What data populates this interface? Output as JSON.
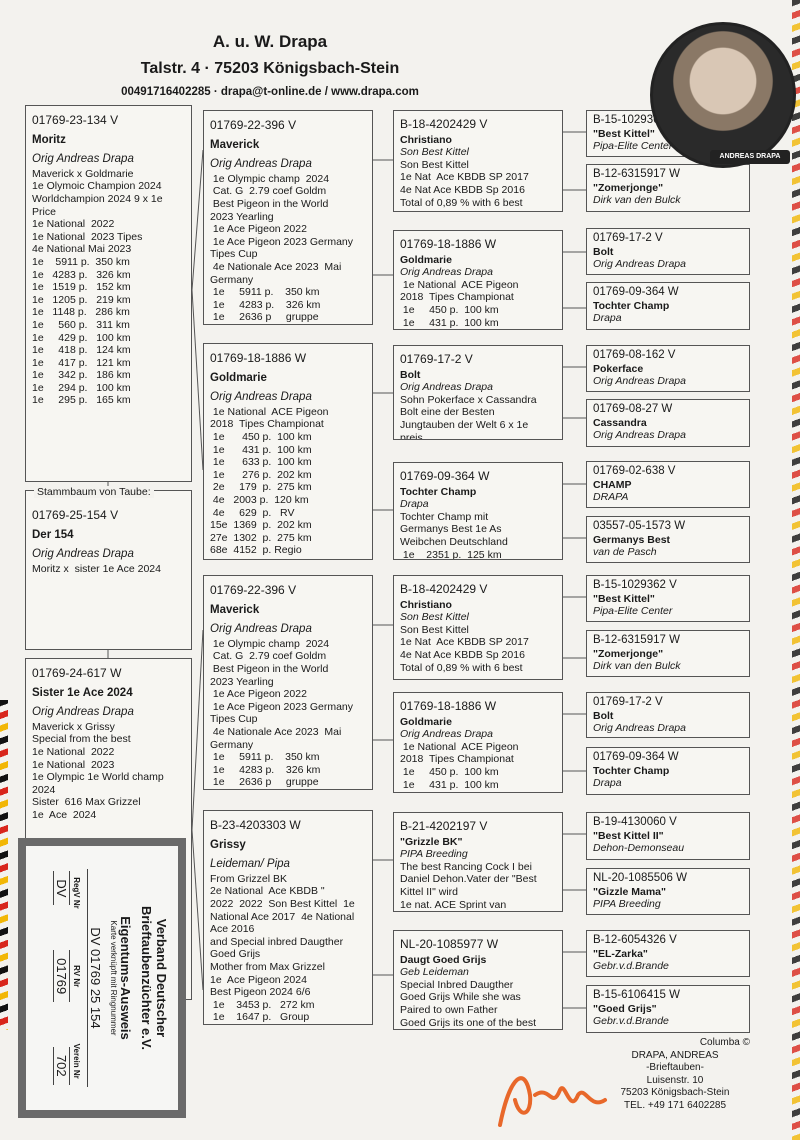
{
  "header": {
    "name": "A. u. W. Drapa",
    "address": "Talstr. 4  ·  75203 Königsbach-Stein",
    "contact": "00491716402285  ·  drapa@t-online.de / www.drapa.com"
  },
  "photo_badge": "ANDREAS DRAPA",
  "legend": "Stammbaum von Taube:",
  "generation1": [
    {
      "ring": "01769-23-134 V",
      "name": "Moritz",
      "breeder": "Orig Andreas Drapa",
      "lines": [
        "Maverick x Goldmarie",
        "1e Olymoic Champion 2024",
        "Worldchampion 2024 9 x 1e",
        "Price",
        "1e National  2022",
        "1e National  2023 Tipes",
        "4e National Mai 2023",
        "1e    5911 p.  350 km",
        "1e   4283 p.   326 km",
        "1e   1519 p.   152 km",
        "1e   1205 p.   219 km",
        "1e   1148 p.   286 km",
        "1e     560 p.   311 km",
        "1e     429 p.   100 km",
        "1e     418 p.   124 km",
        "1e     417 p.   121 km",
        "1e     342 p.   186 km",
        "1e     294 p.   100 km",
        "1e     295 p.   165 km"
      ]
    },
    {
      "ring": "01769-25-154 V",
      "name": "Der   154",
      "breeder": "Orig Andreas Drapa",
      "lines": [
        "Moritz x  sister 1e Ace 2024"
      ]
    },
    {
      "ring": "01769-24-617 W",
      "name": "Sister  1e  Ace 2024",
      "breeder": "Orig Andreas Drapa",
      "lines": [
        "Maverick x Grissy",
        "Special from the best",
        "1e National  2022",
        "1e National  2023",
        "1e Olympic 1e World champ",
        "2024",
        "Sister  616 Max Grizzel",
        "1e  Ace  2024"
      ]
    }
  ],
  "generation2": [
    {
      "ring": "01769-22-396 V",
      "name": "Maverick",
      "breeder": "Orig Andreas Drapa",
      "lines": [
        " 1e Olympic champ  2024",
        " Cat. G  2.79 coef Goldm",
        " Best Pigeon in the World",
        "2023 Yearling",
        " 1e Ace Pigeon 2022",
        " 1e Ace Pigeon 2023 Germany",
        "Tipes Cup",
        " 4e Nationale Ace 2023  Mai",
        "Germany",
        " 1e     5911 p.    350 km",
        " 1e     4283 p.    326 km",
        " 1e     2636 p     gruppe"
      ]
    },
    {
      "ring": "01769-18-1886 W",
      "name": "Goldmarie",
      "breeder": "Orig Andreas Drapa",
      "lines": [
        " 1e National  ACE Pigeon",
        "2018  Tipes Championat",
        " 1e      450 p.  100 km",
        " 1e      431 p.  100 km",
        " 1e      633 p.  100 km",
        " 1e      276 p.  202 km",
        " 2e     179  p.  275 km",
        " 4e   2003 p.  120 km",
        " 4e     629  p.   RV",
        "15e  1369  p.  202 km",
        "27e  1302  p.  275 km",
        "68e  4152  p. Regio"
      ]
    },
    {
      "ring": "01769-22-396 V",
      "name": "Maverick",
      "breeder": "Orig Andreas Drapa",
      "lines": [
        " 1e Olympic champ  2024",
        " Cat. G  2.79 coef Goldm",
        " Best Pigeon in the World",
        "2023 Yearling",
        " 1e Ace Pigeon 2022",
        " 1e Ace Pigeon 2023 Germany",
        "Tipes Cup",
        " 4e Nationale Ace 2023  Mai",
        "Germany",
        " 1e     5911 p.    350 km",
        " 1e     4283 p.    326 km",
        " 1e     2636 p     gruppe"
      ]
    },
    {
      "ring": "B-23-4203303 W",
      "name": "Grissy",
      "breeder": "Leideman/ Pipa",
      "lines": [
        "From Grizzel BK",
        "2e National  Ace KBDB \"",
        "2022  2022  Son Best Kittel  1e",
        "National Ace 2017  4e National",
        "Ace 2016",
        "and Special inbred Daugther",
        "Goed Grijs",
        "Mother from Max Grizzel",
        "1e  Ace Pigeon 2024",
        "Best Pigeon 2024 6/6",
        " 1e    3453 p.   272 km",
        " 1e    1647 p.   Group"
      ]
    }
  ],
  "generation3": [
    {
      "ring": "B-18-4202429 V",
      "name": "Christiano",
      "breeder": "Son Best Kittel",
      "lines": [
        "Son Best Kittel",
        "1e Nat  Ace KBDB SP 2017",
        "4e Nat Ace KBDB Sp 2016",
        "Total of 0,89 % with 6 best"
      ]
    },
    {
      "ring": "01769-18-1886 W",
      "name": "Goldmarie",
      "breeder": "Orig Andreas Drapa",
      "lines": [
        " 1e National  ACE Pigeon",
        "2018  Tipes Championat",
        " 1e     450 p.  100 km",
        " 1e     431 p.  100 km"
      ]
    },
    {
      "ring": "01769-17-2 V",
      "name": "  Bolt",
      "breeder": "Orig Andreas Drapa",
      "lines": [
        "Sohn Pokerface x Cassandra",
        "Bolt eine der Besten",
        "Jungtauben der Welt 6 x 1e",
        "preis"
      ]
    },
    {
      "ring": "01769-09-364 W",
      "name": "Tochter Champ",
      "breeder": "Drapa",
      "lines": [
        "Tochter Champ mit",
        "Germanys Best 1e As",
        "Weibchen Deutschland",
        " 1e    2351 p.  125 km"
      ]
    },
    {
      "ring": "B-18-4202429 V",
      "name": "Christiano",
      "breeder": "Son Best Kittel",
      "lines": [
        "Son Best Kittel",
        "1e Nat  Ace KBDB SP 2017",
        "4e Nat Ace KBDB Sp 2016",
        "Total of 0,89 % with 6 best"
      ]
    },
    {
      "ring": "01769-18-1886 W",
      "name": "Goldmarie",
      "breeder": "Orig Andreas Drapa",
      "lines": [
        " 1e National  ACE Pigeon",
        "2018  Tipes Championat",
        " 1e     450 p.  100 km",
        " 1e     431 p.  100 km"
      ]
    },
    {
      "ring": "B-21-4202197 V",
      "name": "\"Grizzle BK\"",
      "breeder": "PIPA Breeding",
      "lines": [
        "The best Rancing Cock I bei",
        "Daniel Dehon.Vater der \"Best",
        "Kittel II\" wird",
        "1e nat. ACE Sprint van"
      ]
    },
    {
      "ring": "NL-20-1085977 W",
      "name": "Daugt Goed Grijs",
      "breeder": "Geb Leideman",
      "lines": [
        "Special Inbred Daugther",
        "Goed Grijs While she was",
        "Paired to own Father",
        "Goed Grijs its one of the best"
      ]
    }
  ],
  "generation4": [
    {
      "ring": "B-15-1029362 V",
      "name": "\"Best Kittel\"",
      "breeder": "Pipa-Elite Center"
    },
    {
      "ring": "B-12-6315917 W",
      "name": "\"Zomerjonge\"",
      "breeder": "Dirk van den Bulck"
    },
    {
      "ring": "01769-17-2 V",
      "name": "  Bolt",
      "breeder": "Orig Andreas Drapa"
    },
    {
      "ring": "01769-09-364 W",
      "name": "Tochter Champ",
      "breeder": "Drapa"
    },
    {
      "ring": "01769-08-162 V",
      "name": "Pokerface",
      "breeder": "Orig Andreas Drapa"
    },
    {
      "ring": "01769-08-27 W",
      "name": "Cassandra",
      "breeder": "Orig Andreas Drapa"
    },
    {
      "ring": "01769-02-638 V",
      "name": "CHAMP",
      "breeder": "DRAPA"
    },
    {
      "ring": "03557-05-1573 W",
      "name": "Germanys Best",
      "breeder": "van de Pasch"
    },
    {
      "ring": "B-15-1029362 V",
      "name": "\"Best Kittel\"",
      "breeder": "Pipa-Elite Center"
    },
    {
      "ring": "B-12-6315917 W",
      "name": "\"Zomerjonge\"",
      "breeder": "Dirk van den Bulck"
    },
    {
      "ring": "01769-17-2 V",
      "name": "  Bolt",
      "breeder": "Orig Andreas Drapa"
    },
    {
      "ring": "01769-09-364 W",
      "name": "Tochter Champ",
      "breeder": "Drapa"
    },
    {
      "ring": "B-19-4130060 V",
      "name": "\"Best Kittel II\"",
      "breeder": "Dehon-Demonseau"
    },
    {
      "ring": "NL-20-1085506 W",
      "name": "\"Gizzle Mama\"",
      "breeder": "PIPA Breeding"
    },
    {
      "ring": "B-12-6054326 V",
      "name": "\"EL-Zarka\"",
      "breeder": "Gebr.v.d.Brande"
    },
    {
      "ring": "B-15-6106415 W",
      "name": "\"Goed Grijs\"",
      "breeder": "Gebr.v.d.Brande"
    }
  ],
  "stamp": {
    "org_line1": "Verband Deutscher",
    "org_line2": "Brieftaubenzüchter e.V.",
    "title": "Eigentums-Ausweis",
    "subtitle": "Karte verknüpft mit Ringnummer",
    "ring": "DV 01769 25 154",
    "labels": [
      "RegV Nr",
      "RV Nr",
      "Verein Nr"
    ],
    "values": [
      "DV",
      "01769",
      "702"
    ]
  },
  "footer": {
    "copyright": "Columba ©",
    "lines": [
      "DRAPA, ANDREAS",
      "-Brieftauben-",
      "Luisenstr. 10",
      "75203 Königsbach-Stein",
      "TEL. +49 171 6402285"
    ]
  },
  "colors": {
    "signature": "#e8682a",
    "flag_black": "#111111",
    "flag_red": "#d8261c",
    "flag_gold": "#f2b705"
  }
}
